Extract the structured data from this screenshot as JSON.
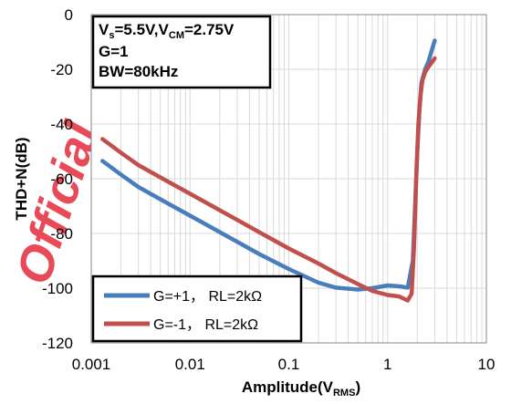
{
  "chart_data": {
    "type": "line",
    "title": "",
    "xlabel": {
      "main": "Amplitude(V",
      "sub": "RMS",
      "close": ")"
    },
    "ylabel": "THD+N(dB)",
    "xscale": "log",
    "xlim": [
      0.001,
      10
    ],
    "ylim": [
      -120,
      0
    ],
    "x_ticks": [
      "0.001",
      "0.01",
      "0.1",
      "1",
      "10"
    ],
    "y_ticks": [
      "0",
      "-20",
      "-40",
      "-60",
      "-80",
      "-100",
      "-120"
    ],
    "grid": true,
    "legend_position": "bottom-left",
    "annotation": {
      "line1": {
        "a": "V",
        "a_sub": "s",
        "b": "=5.5V,V",
        "b_sub": "CM",
        "c": "=2.75V"
      },
      "line2": "G=1",
      "line3": "BW=80kHz"
    },
    "series": [
      {
        "name": "G=+1， RL=2kΩ",
        "color": "#4a7ebb",
        "x": [
          0.0013,
          0.002,
          0.003,
          0.005,
          0.01,
          0.02,
          0.05,
          0.1,
          0.2,
          0.3,
          0.5,
          0.7,
          1.0,
          1.3,
          1.6,
          1.8,
          1.9,
          2.0,
          2.1,
          2.2,
          2.4,
          2.6,
          2.8,
          3.0
        ],
        "y": [
          -53.5,
          -58.5,
          -63,
          -67.5,
          -73.5,
          -79.5,
          -87.5,
          -93,
          -98,
          -99.8,
          -100.5,
          -100,
          -99,
          -99.3,
          -99.8,
          -90,
          -70,
          -50,
          -35,
          -25,
          -20,
          -17,
          -13,
          -9.5
        ]
      },
      {
        "name": "G=-1， RL=2kΩ",
        "color": "#c0504d",
        "x": [
          0.0013,
          0.002,
          0.003,
          0.005,
          0.01,
          0.02,
          0.05,
          0.1,
          0.2,
          0.3,
          0.5,
          0.7,
          1.0,
          1.3,
          1.6,
          1.75,
          1.85,
          1.95,
          2.05,
          2.15,
          2.25,
          2.4,
          2.6,
          2.8,
          3.0
        ],
        "y": [
          -45.5,
          -50.5,
          -55,
          -59.5,
          -65.5,
          -71.5,
          -79.5,
          -85.5,
          -91,
          -94.5,
          -98.5,
          -101,
          -102.5,
          -103,
          -104.5,
          -102,
          -85,
          -60,
          -40,
          -30,
          -24,
          -21,
          -19,
          -17.5,
          -16
        ]
      }
    ]
  },
  "watermark": "Official"
}
